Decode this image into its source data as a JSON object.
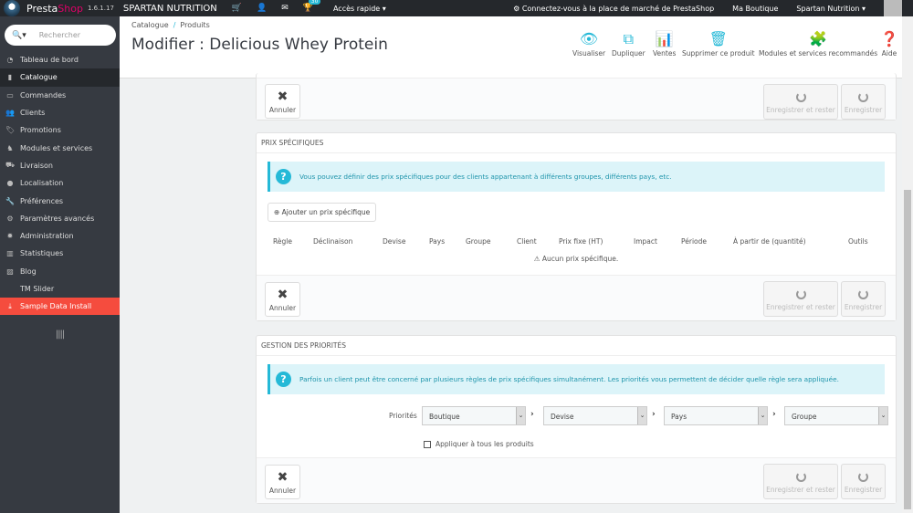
{
  "topbar": {
    "brand_a": "Presta",
    "brand_b": "Shop",
    "version": "1.6.1.17",
    "shop_name": "SPARTAN NUTRITION",
    "notif_count": "30",
    "quick_access": "Accès rapide ▾",
    "marketplace": "Connectez-vous à la place de marché de PrestaShop",
    "my_shop": "Ma Boutique",
    "user": "Spartan Nutrition ▾"
  },
  "sidebar": {
    "search_placeholder": "Rechercher",
    "items": [
      {
        "label": "Tableau de bord",
        "icon": "dashboard-icon"
      },
      {
        "label": "Catalogue",
        "icon": "book-icon",
        "active": true
      },
      {
        "label": "Commandes",
        "icon": "credit-card-icon"
      },
      {
        "label": "Clients",
        "icon": "users-icon"
      },
      {
        "label": "Promotions",
        "icon": "tag-icon"
      },
      {
        "label": "Modules et services",
        "icon": "puzzle-icon"
      },
      {
        "label": "Livraison",
        "icon": "truck-icon"
      },
      {
        "label": "Localisation",
        "icon": "globe-icon"
      },
      {
        "label": "Préférences",
        "icon": "wrench-icon"
      },
      {
        "label": "Paramètres avancés",
        "icon": "cogs-icon"
      },
      {
        "label": "Administration",
        "icon": "gear-icon"
      },
      {
        "label": "Statistiques",
        "icon": "bar-chart-icon"
      },
      {
        "label": "Blog",
        "icon": "edit-icon"
      },
      {
        "label": "TM Slider",
        "icon": ""
      },
      {
        "label": "Sample Data Install",
        "icon": "download-icon",
        "highlight": "#f54c3e"
      }
    ]
  },
  "header": {
    "breadcrumb": [
      "Catalogue",
      "Produits"
    ],
    "title": "Modifier : Delicious Whey Protein",
    "toolbar": [
      {
        "label": "Visualiser",
        "icon": "eye-icon"
      },
      {
        "label": "Dupliquer",
        "icon": "copy-icon"
      },
      {
        "label": "Ventes",
        "icon": "bar-chart-icon"
      },
      {
        "label": "Supprimer ce produit",
        "icon": "trash-icon"
      },
      {
        "label": "Modules et services recommandés",
        "icon": "puzzle-icon"
      },
      {
        "label": "Aide",
        "icon": "help-icon"
      }
    ]
  },
  "footer_buttons": {
    "cancel": "Annuler",
    "save_stay": "Enregistrer et rester",
    "save": "Enregistrer"
  },
  "specific_prices": {
    "title": "Prix spécifiques",
    "info": "Vous pouvez définir des prix spécifiques pour des clients appartenant à différents groupes, différents pays, etc.",
    "add_button": "Ajouter un prix spécifique",
    "columns": [
      "Règle",
      "Déclinaison",
      "Devise",
      "Pays",
      "Groupe",
      "Client",
      "Prix fixe (HT)",
      "Impact",
      "Période",
      "À partir de (quantité)",
      "Outils"
    ],
    "empty": "Aucun prix spécifique."
  },
  "priorities": {
    "title": "Gestion des priorités",
    "info": "Parfois un client peut être concerné par plusieurs règles de prix spécifiques simultanément. Les priorités vous permettent de décider quelle règle sera appliquée.",
    "label": "Priorités",
    "selects": [
      "Boutique",
      "Devise",
      "Pays",
      "Groupe"
    ],
    "apply_all": "Appliquer à tous les produits",
    "apply_all_checked": false
  },
  "colors": {
    "accent": "#25b9d7",
    "sidebar": "#363a41",
    "topbar": "#25282c"
  }
}
